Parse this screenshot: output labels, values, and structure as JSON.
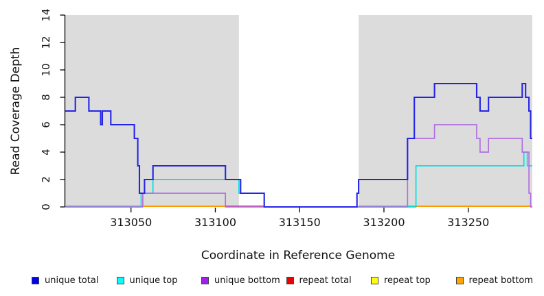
{
  "chart_data": {
    "type": "line",
    "step": true,
    "title": "",
    "xlabel": "Coordinate in Reference Genome",
    "ylabel": "Read Coverage Depth",
    "xlim": [
      313011,
      313288
    ],
    "ylim": [
      0,
      14
    ],
    "x_ticks": [
      313050,
      313100,
      313150,
      313200,
      313250
    ],
    "y_ticks": [
      0,
      2,
      4,
      6,
      8,
      10,
      12,
      14
    ],
    "grid": false,
    "shade_color": "#DCDCDC",
    "shaded_regions": [
      {
        "name": "repeat-region-left",
        "from": 313011,
        "to": 313114
      },
      {
        "name": "repeat-region-right",
        "from": 313185,
        "to": 313288
      }
    ],
    "series": [
      {
        "name": "unique top",
        "color": "#00E0E0",
        "width": 1.7,
        "end": 313288,
        "steps": [
          [
            313011,
            0
          ],
          [
            313056,
            1
          ],
          [
            313063,
            2
          ],
          [
            313114,
            1
          ],
          [
            313129,
            0
          ],
          [
            313219,
            3
          ],
          [
            313283,
            4
          ],
          [
            313285,
            3
          ]
        ]
      },
      {
        "name": "unique bottom",
        "color": "#B06FE0",
        "width": 1.7,
        "end": 313288,
        "steps": [
          [
            313011,
            0
          ],
          [
            313057,
            1
          ],
          [
            313106,
            0
          ],
          [
            313214,
            5
          ],
          [
            313230,
            6
          ],
          [
            313255,
            5
          ],
          [
            313257,
            4
          ],
          [
            313262,
            5
          ],
          [
            313282,
            4
          ],
          [
            313286,
            1
          ],
          [
            313287,
            0
          ]
        ]
      },
      {
        "name": "unique total",
        "color": "#2424E8",
        "width": 2.1,
        "end": 313288,
        "steps": [
          [
            313011,
            7
          ],
          [
            313017,
            8
          ],
          [
            313025,
            7
          ],
          [
            313032,
            6
          ],
          [
            313033,
            7
          ],
          [
            313038,
            6
          ],
          [
            313052,
            5
          ],
          [
            313054,
            3
          ],
          [
            313055,
            1
          ],
          [
            313058,
            2
          ],
          [
            313063,
            3
          ],
          [
            313106,
            2
          ],
          [
            313115,
            1
          ],
          [
            313129,
            0
          ],
          [
            313184,
            1
          ],
          [
            313185,
            2
          ],
          [
            313214,
            5
          ],
          [
            313218,
            8
          ],
          [
            313230,
            9
          ],
          [
            313255,
            8
          ],
          [
            313257,
            7
          ],
          [
            313262,
            8
          ],
          [
            313282,
            9
          ],
          [
            313284,
            8
          ],
          [
            313286,
            7
          ],
          [
            313287,
            5
          ]
        ]
      }
    ],
    "baseline_segments": [
      {
        "color": "#58BE8A",
        "from": 313011,
        "to": 313057
      },
      {
        "color": "#FF9900",
        "from": 313057,
        "to": 313106
      },
      {
        "color": "#E03A4E",
        "from": 313106,
        "to": 313129
      },
      {
        "color": "#58BE8A",
        "from": 313185,
        "to": 313219
      },
      {
        "color": "#FF9900",
        "from": 313219,
        "to": 313288
      }
    ],
    "baseline_note": "repeat total / repeat top / repeat bottom stay at depth 0; overlapping zero-level lines render as green, orange or red segments"
  },
  "legend": {
    "items": [
      {
        "label": "unique total",
        "color": "#0000EE"
      },
      {
        "label": "unique top",
        "color": "#00FFFF"
      },
      {
        "label": "unique bottom",
        "color": "#A020F0"
      },
      {
        "label": "repeat total",
        "color": "#EE0000"
      },
      {
        "label": "repeat top",
        "color": "#FFFF00"
      },
      {
        "label": "repeat bottom",
        "color": "#FFA500"
      }
    ]
  }
}
